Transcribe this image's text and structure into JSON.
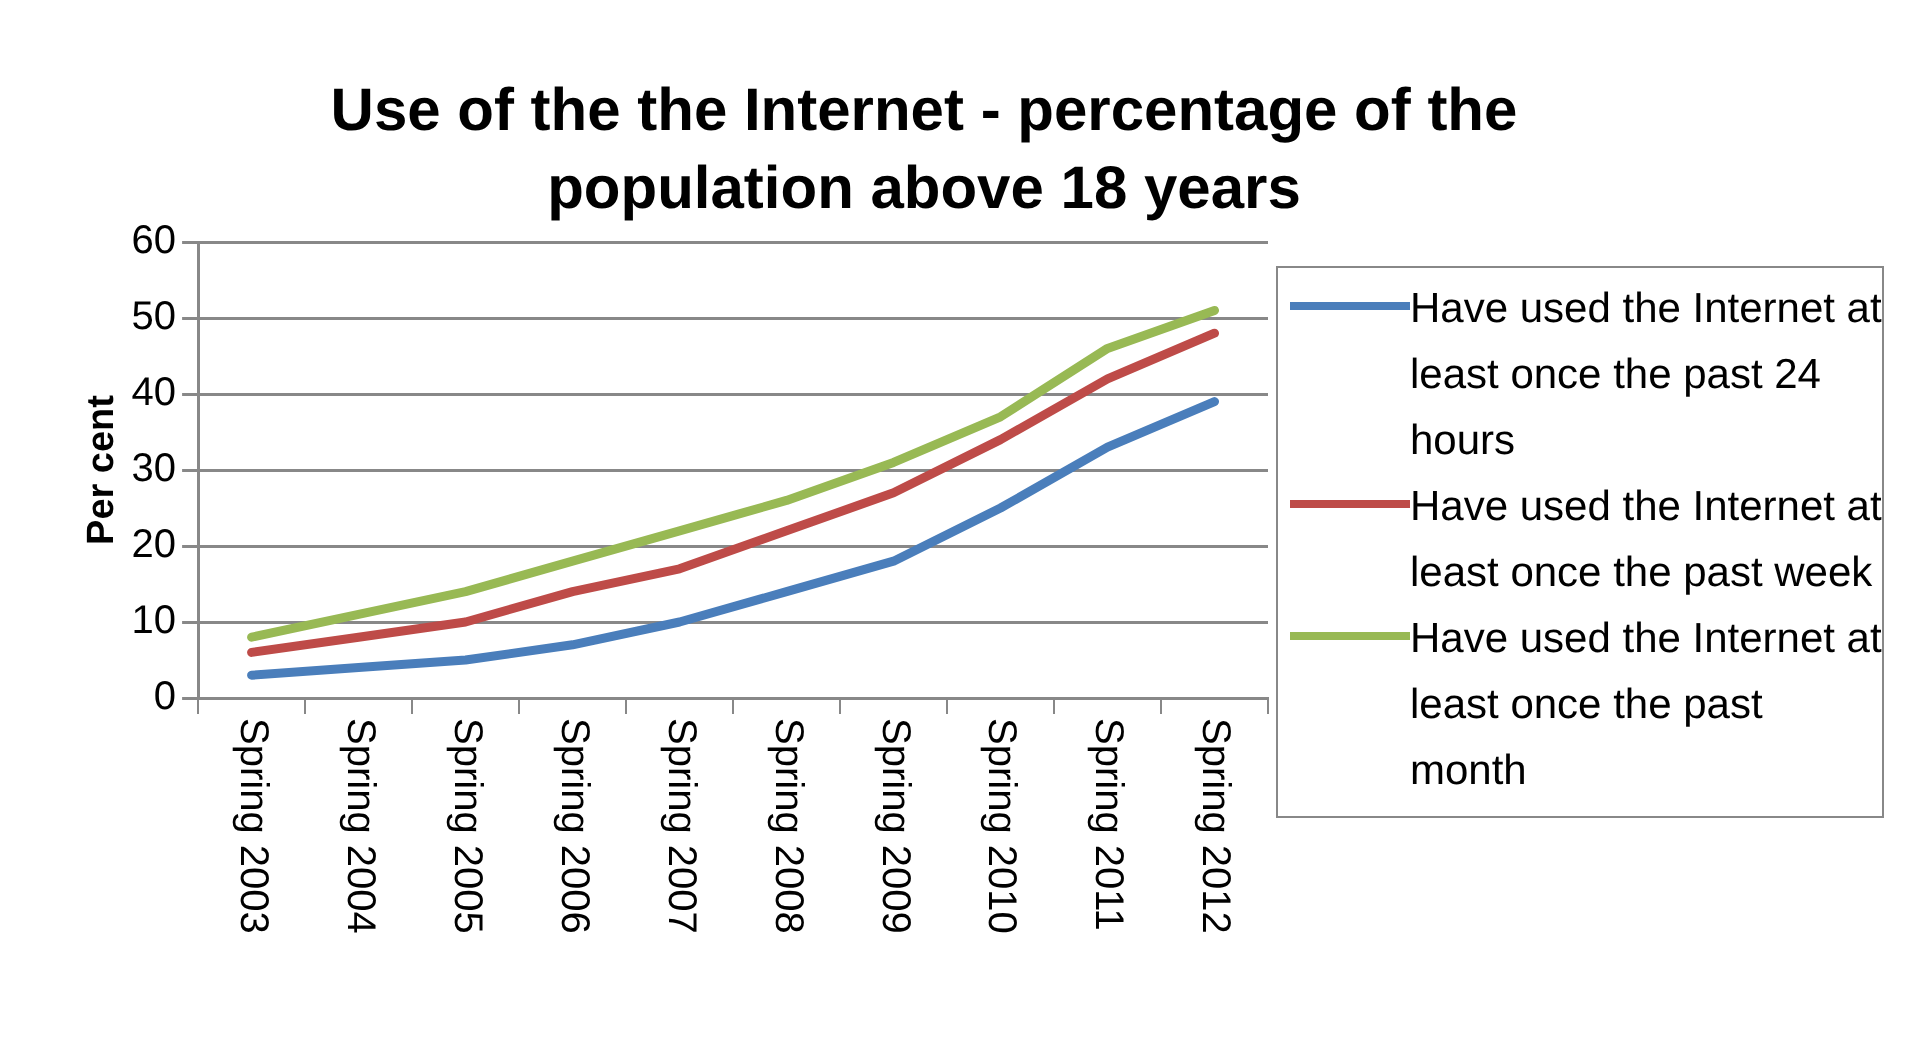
{
  "chart_data": {
    "type": "line",
    "title": "Use of the the Internet - percentage of the population above 18 years",
    "ylabel": "Per cent",
    "categories": [
      "Spring 2003",
      "Spring 2004",
      "Spring 2005",
      "Spring 2006",
      "Spring 2007",
      "Spring 2008",
      "Spring 2009",
      "Spring 2010",
      "Spring 2011",
      "Spring 2012"
    ],
    "series": [
      {
        "name": "Have used the Internet at least once the past 24 hours",
        "color": "#4a7ebb",
        "values": [
          3,
          4,
          5,
          7,
          10,
          14,
          18,
          25,
          33,
          39
        ]
      },
      {
        "name": "Have used the Internet at least once the past week",
        "color": "#be4b48",
        "values": [
          6,
          8,
          10,
          14,
          17,
          22,
          27,
          34,
          42,
          48
        ]
      },
      {
        "name": "Have used the Internet at least once the past month",
        "color": "#98b954",
        "values": [
          8,
          11,
          14,
          18,
          22,
          26,
          31,
          37,
          46,
          51
        ]
      }
    ],
    "ylim": [
      0,
      60
    ],
    "yticks": [
      0,
      10,
      20,
      30,
      40,
      50,
      60
    ],
    "grid": "y",
    "legend": "right",
    "marker": "none",
    "line_style": "solid"
  }
}
